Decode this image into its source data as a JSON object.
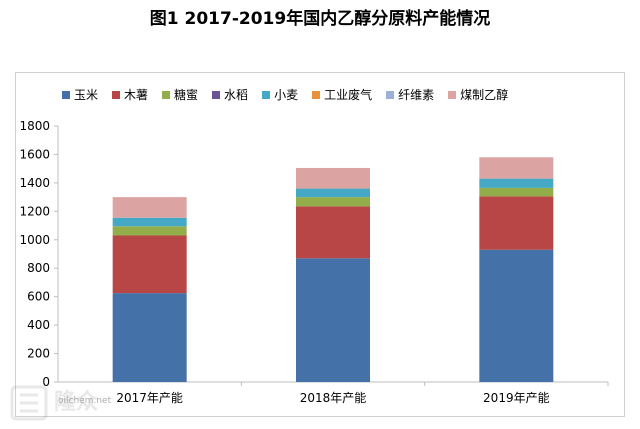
{
  "chart_data": {
    "type": "bar",
    "stacked": true,
    "title": "图1 2017-2019年国内乙醇分原料产能情况",
    "categories": [
      "2017年产能",
      "2018年产能",
      "2019年产能"
    ],
    "ylim": [
      0,
      1800
    ],
    "yticks": [
      0,
      200,
      400,
      600,
      800,
      1000,
      1200,
      1400,
      1600,
      1800
    ],
    "grid": false,
    "legend_position": "top",
    "series": [
      {
        "name": "玉米",
        "color": "#4472a8",
        "values": [
          625,
          870,
          930
        ]
      },
      {
        "name": "木薯",
        "color": "#b84646",
        "values": [
          405,
          365,
          375
        ]
      },
      {
        "name": "糖蜜",
        "color": "#93ad4b",
        "values": [
          65,
          65,
          60
        ]
      },
      {
        "name": "水稻",
        "color": "#6a5295",
        "values": [
          0,
          0,
          0
        ]
      },
      {
        "name": "小麦",
        "color": "#45a8c4",
        "values": [
          60,
          60,
          65
        ]
      },
      {
        "name": "工业废气",
        "color": "#e8923a",
        "values": [
          0,
          0,
          0
        ]
      },
      {
        "name": "纤维素",
        "color": "#9db1d6",
        "values": [
          0,
          0,
          0
        ]
      },
      {
        "name": "煤制乙醇",
        "color": "#dca3a3",
        "values": [
          145,
          145,
          150
        ]
      }
    ]
  },
  "watermark": {
    "text": "oilchem.net"
  }
}
